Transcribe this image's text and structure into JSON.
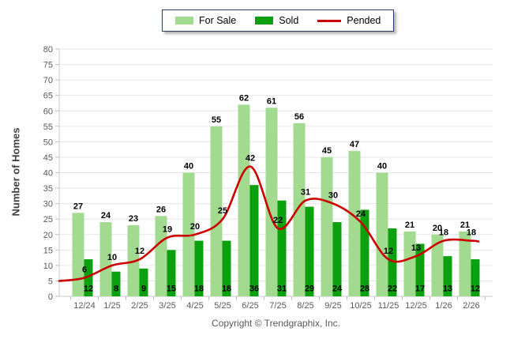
{
  "chart_data": {
    "type": "bar",
    "categories": [
      "12/24",
      "1/25",
      "2/25",
      "3/25",
      "4/25",
      "5/25",
      "6/25",
      "7/25",
      "8/25",
      "9/25",
      "10/25",
      "11/25",
      "12/25",
      "1/26",
      "2/26"
    ],
    "series": [
      {
        "name": "For Sale",
        "type": "bar",
        "color": "#A2DA90",
        "values": [
          27,
          24,
          23,
          26,
          40,
          55,
          62,
          61,
          56,
          45,
          47,
          40,
          21,
          20,
          21
        ]
      },
      {
        "name": "Sold",
        "type": "bar",
        "color": "#0BA00E",
        "values": [
          12,
          8,
          9,
          15,
          18,
          18,
          36,
          31,
          29,
          24,
          28,
          22,
          17,
          13,
          12
        ]
      },
      {
        "name": "Pended",
        "type": "line",
        "color": "#CC0000",
        "values": [
          6,
          10,
          12,
          19,
          20,
          25,
          42,
          22,
          31,
          30,
          24,
          12,
          13,
          18,
          18
        ]
      }
    ],
    "title": "",
    "xlabel": "",
    "ylabel": "Number of Homes",
    "ylim": [
      0,
      80
    ],
    "ytick_step": 5,
    "grid": true,
    "legend_position": "top-center"
  },
  "footer": {
    "copyright": "Copyright © Trendgraphix, Inc."
  }
}
